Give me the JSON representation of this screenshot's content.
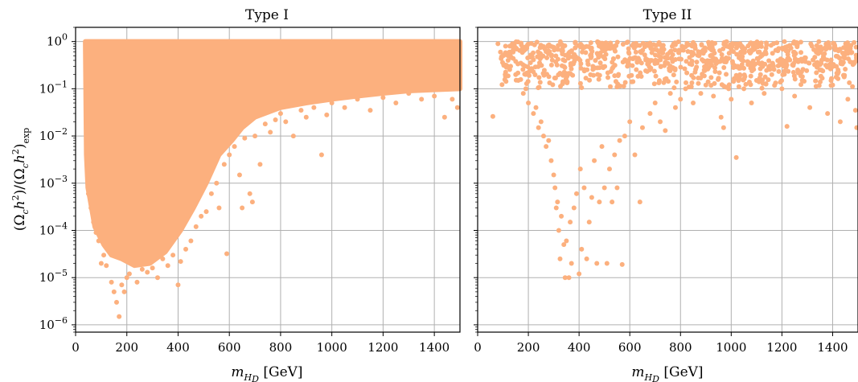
{
  "chart_data": [
    {
      "type": "scatter",
      "title": "Type I",
      "xlabel": "m_{H_D} [GeV]",
      "ylabel": "(Ω_c h²)/(Ω_c h²)_exp",
      "xlim": [
        0,
        1500
      ],
      "ylim": [
        7e-07,
        2.0
      ],
      "y_scale": "log",
      "grid": true,
      "point_color": "#fcb07e",
      "x_ticks": [
        0,
        200,
        400,
        600,
        800,
        1000,
        1200,
        1400
      ],
      "y_ticks": [
        1e-06,
        1e-05,
        0.0001,
        0.001,
        0.01,
        0.1,
        1
      ],
      "y_tick_labels": [
        [
          "10",
          "−6"
        ],
        [
          "10",
          "−5"
        ],
        [
          "10",
          "−4"
        ],
        [
          "10",
          "−3"
        ],
        [
          "10",
          "−2"
        ],
        [
          "10",
          "−1"
        ],
        [
          "10",
          "0"
        ]
      ],
      "filled_region": {
        "upper_y": 1.0,
        "lower_boundary": [
          [
            38,
            1.0
          ],
          [
            40,
            0.06
          ],
          [
            42,
            0.004
          ],
          [
            48,
            0.0008
          ],
          [
            55,
            0.0005
          ],
          [
            75,
            0.00012
          ],
          [
            110,
            5e-05
          ],
          [
            140,
            3e-05
          ],
          [
            180,
            2.5e-05
          ],
          [
            230,
            1.8e-05
          ],
          [
            290,
            2e-05
          ],
          [
            350,
            3.5e-05
          ],
          [
            410,
            0.0001
          ],
          [
            460,
            0.0003
          ],
          [
            510,
            0.001
          ],
          [
            560,
            0.004
          ],
          [
            610,
            0.008
          ],
          [
            650,
            0.015
          ],
          [
            700,
            0.025
          ],
          [
            800,
            0.04
          ],
          [
            900,
            0.05
          ],
          [
            1000,
            0.06
          ],
          [
            1100,
            0.07
          ],
          [
            1200,
            0.08
          ],
          [
            1300,
            0.09
          ],
          [
            1400,
            0.095
          ],
          [
            1500,
            0.1
          ]
        ]
      },
      "points": [
        [
          42,
          0.05
        ],
        [
          45,
          0.02
        ],
        [
          48,
          0.006
        ],
        [
          50,
          0.0006
        ],
        [
          55,
          0.0012
        ],
        [
          60,
          0.0003
        ],
        [
          70,
          0.00015
        ],
        [
          80,
          9e-05
        ],
        [
          90,
          6e-05
        ],
        [
          100,
          2e-05
        ],
        [
          110,
          3e-05
        ],
        [
          120,
          1.8e-05
        ],
        [
          140,
          8e-06
        ],
        [
          150,
          5e-06
        ],
        [
          160,
          3e-06
        ],
        [
          170,
          1.5e-06
        ],
        [
          180,
          7e-06
        ],
        [
          190,
          5e-06
        ],
        [
          200,
          1e-05
        ],
        [
          210,
          1.2e-05
        ],
        [
          240,
          8e-06
        ],
        [
          260,
          1.5e-05
        ],
        [
          280,
          1.3e-05
        ],
        [
          300,
          1.6e-05
        ],
        [
          320,
          1e-05
        ],
        [
          340,
          2.5e-05
        ],
        [
          360,
          1.8e-05
        ],
        [
          380,
          3e-05
        ],
        [
          400,
          7e-06
        ],
        [
          410,
          2.2e-05
        ],
        [
          430,
          4e-05
        ],
        [
          450,
          6e-05
        ],
        [
          470,
          0.00012
        ],
        [
          490,
          0.0002
        ],
        [
          510,
          0.00025
        ],
        [
          530,
          0.0006
        ],
        [
          550,
          0.001
        ],
        [
          560,
          0.0003
        ],
        [
          580,
          0.0025
        ],
        [
          590,
          3.2e-05
        ],
        [
          600,
          0.004
        ],
        [
          620,
          0.006
        ],
        [
          640,
          0.0015
        ],
        [
          650,
          0.0003
        ],
        [
          660,
          0.009
        ],
        [
          680,
          0.0006
        ],
        [
          690,
          0.0004
        ],
        [
          700,
          0.01
        ],
        [
          720,
          0.0025
        ],
        [
          740,
          0.018
        ],
        [
          760,
          0.012
        ],
        [
          780,
          0.022
        ],
        [
          800,
          0.03
        ],
        [
          820,
          0.02
        ],
        [
          850,
          0.01
        ],
        [
          880,
          0.035
        ],
        [
          900,
          0.025
        ],
        [
          930,
          0.04
        ],
        [
          960,
          0.004
        ],
        [
          980,
          0.028
        ],
        [
          1000,
          0.05
        ],
        [
          1050,
          0.04
        ],
        [
          1100,
          0.06
        ],
        [
          1150,
          0.035
        ],
        [
          1200,
          0.065
        ],
        [
          1250,
          0.05
        ],
        [
          1300,
          0.08
        ],
        [
          1350,
          0.06
        ],
        [
          1400,
          0.07
        ],
        [
          1440,
          0.025
        ],
        [
          1470,
          0.06
        ],
        [
          1490,
          0.04
        ]
      ]
    },
    {
      "type": "scatter",
      "title": "Type II",
      "xlabel": "m_{H_D} [GeV]",
      "ylabel": "",
      "xlim": [
        0,
        1500
      ],
      "ylim": [
        7e-07,
        2.0
      ],
      "y_scale": "log",
      "grid": true,
      "point_color": "#fcb07e",
      "x_ticks": [
        0,
        200,
        400,
        600,
        800,
        1000,
        1200,
        1400
      ],
      "y_ticks": [
        1e-06,
        1e-05,
        0.0001,
        0.001,
        0.01,
        0.1,
        1
      ],
      "y_tick_labels": [],
      "points": [
        [
          60,
          0.026
        ],
        [
          80,
          0.9
        ],
        [
          90,
          0.6
        ],
        [
          100,
          0.5
        ],
        [
          110,
          0.8
        ],
        [
          120,
          0.4
        ],
        [
          130,
          0.3
        ],
        [
          140,
          0.6
        ],
        [
          150,
          0.2
        ],
        [
          160,
          0.15
        ],
        [
          170,
          0.35
        ],
        [
          180,
          0.08
        ],
        [
          190,
          0.1
        ],
        [
          200,
          0.05
        ],
        [
          210,
          0.25
        ],
        [
          220,
          0.03
        ],
        [
          230,
          0.04
        ],
        [
          240,
          0.015
        ],
        [
          250,
          0.02
        ],
        [
          260,
          0.01
        ],
        [
          270,
          0.006
        ],
        [
          280,
          0.008
        ],
        [
          290,
          0.003
        ],
        [
          300,
          0.0015
        ],
        [
          305,
          0.0008
        ],
        [
          310,
          0.0003
        ],
        [
          315,
          0.0004
        ],
        [
          320,
          0.0001
        ],
        [
          325,
          2.5e-05
        ],
        [
          330,
          0.0002
        ],
        [
          340,
          5e-05
        ],
        [
          345,
          1e-05
        ],
        [
          350,
          6e-05
        ],
        [
          360,
          1e-05
        ],
        [
          365,
          0.00015
        ],
        [
          370,
          2e-05
        ],
        [
          380,
          0.0003
        ],
        [
          390,
          0.0006
        ],
        [
          400,
          1.2e-05
        ],
        [
          405,
          0.002
        ],
        [
          410,
          4e-05
        ],
        [
          420,
          0.0008
        ],
        [
          430,
          2.5e-05
        ],
        [
          440,
          0.00015
        ],
        [
          450,
          0.0005
        ],
        [
          460,
          0.003
        ],
        [
          470,
          2e-05
        ],
        [
          480,
          0.0004
        ],
        [
          490,
          0.006
        ],
        [
          500,
          0.0008
        ],
        [
          510,
          2e-05
        ],
        [
          520,
          0.002
        ],
        [
          530,
          0.0004
        ],
        [
          540,
          0.004
        ],
        [
          550,
          0.0008
        ],
        [
          560,
          0.008
        ],
        [
          570,
          1.9e-05
        ],
        [
          580,
          0.01
        ],
        [
          600,
          0.02
        ],
        [
          620,
          0.004
        ],
        [
          640,
          0.0004
        ],
        [
          650,
          0.015
        ],
        [
          680,
          0.03
        ],
        [
          700,
          0.05
        ],
        [
          720,
          0.02
        ],
        [
          740,
          0.013
        ],
        [
          760,
          0.08
        ],
        [
          780,
          0.04
        ],
        [
          800,
          0.06
        ],
        [
          820,
          0.1
        ],
        [
          850,
          0.05
        ],
        [
          880,
          0.08
        ],
        [
          900,
          0.12
        ],
        [
          930,
          0.07
        ],
        [
          960,
          0.025
        ],
        [
          970,
          0.015
        ],
        [
          990,
          0.1
        ],
        [
          1000,
          0.06
        ],
        [
          1020,
          0.0035
        ],
        [
          1050,
          0.1
        ],
        [
          1080,
          0.05
        ],
        [
          1100,
          0.15
        ],
        [
          1130,
          0.08
        ],
        [
          1160,
          0.2
        ],
        [
          1200,
          0.1
        ],
        [
          1220,
          0.016
        ],
        [
          1250,
          0.07
        ],
        [
          1280,
          0.15
        ],
        [
          1310,
          0.04
        ],
        [
          1350,
          0.25
        ],
        [
          1380,
          0.03
        ],
        [
          1400,
          0.12
        ],
        [
          1430,
          0.02
        ],
        [
          1460,
          0.06
        ],
        [
          1490,
          0.035
        ],
        [
          1495,
          0.015
        ]
      ],
      "top_band": {
        "y_min": 0.1,
        "y_max": 1.0,
        "x_min": 90,
        "x_max": 1500
      }
    }
  ]
}
